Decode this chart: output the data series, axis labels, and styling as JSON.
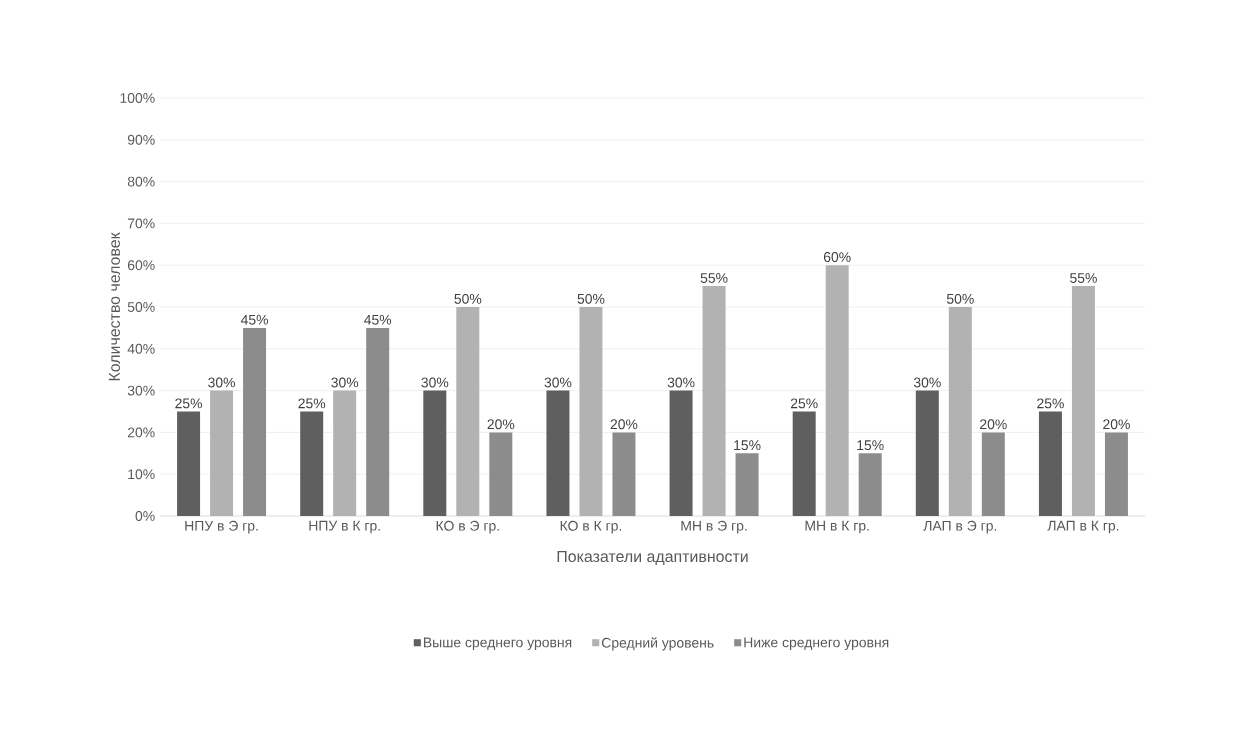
{
  "chart_data": {
    "type": "bar",
    "xlabel": "Показатели адаптивности",
    "ylabel": "Количество человек",
    "categories": [
      "НПУ в Э гр.",
      "НПУ в К гр.",
      "КО в Э гр.",
      "КО в К гр.",
      "МН в Э гр.",
      "МН в К гр.",
      "ЛАП в Э гр.",
      "ЛАП в К гр."
    ],
    "series": [
      {
        "name": "Выше среднего уровня",
        "color": "#5f5f5f",
        "values": [
          25,
          25,
          30,
          30,
          30,
          25,
          30,
          25
        ],
        "value_labels": [
          "25%",
          "25%",
          "30%",
          "30%",
          "30%",
          "25%",
          "30%",
          "25%"
        ]
      },
      {
        "name": "Средний уровень",
        "color": "#b2b2b2",
        "values": [
          30,
          30,
          50,
          50,
          55,
          60,
          50,
          55
        ],
        "value_labels": [
          "30%",
          "30%",
          "50%",
          "50%",
          "55%",
          "60%",
          "50%",
          "55%"
        ]
      },
      {
        "name": "Ниже среднего уровня",
        "color": "#8c8c8c",
        "values": [
          45,
          45,
          20,
          20,
          15,
          15,
          20,
          20
        ],
        "value_labels": [
          "45%",
          "45%",
          "20%",
          "20%",
          "15%",
          "15%",
          "20%",
          "20%"
        ]
      }
    ],
    "ylim": [
      0,
      100
    ],
    "yticks": [
      {
        "value": 0,
        "label": "0%"
      },
      {
        "value": 10,
        "label": "10%"
      },
      {
        "value": 20,
        "label": "20%"
      },
      {
        "value": 30,
        "label": "30%"
      },
      {
        "value": 40,
        "label": "40%"
      },
      {
        "value": 50,
        "label": "50%"
      },
      {
        "value": 60,
        "label": "60%"
      },
      {
        "value": 70,
        "label": "70%"
      },
      {
        "value": 80,
        "label": "80%"
      },
      {
        "value": 90,
        "label": "90%"
      },
      {
        "value": 100,
        "label": "100%"
      }
    ],
    "grid": "y",
    "legend": "bottom"
  }
}
